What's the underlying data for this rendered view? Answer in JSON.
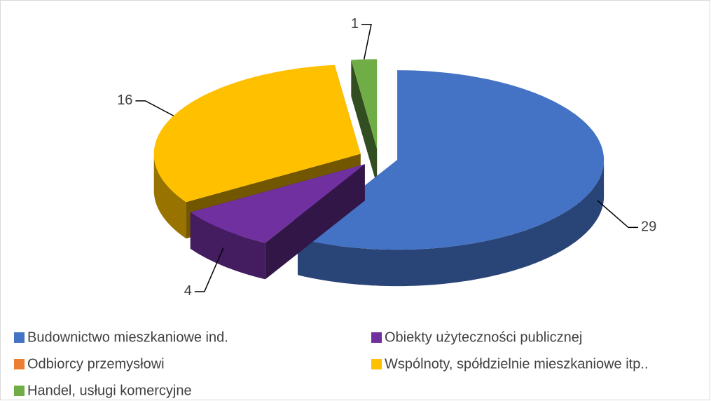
{
  "chart_data": {
    "type": "pie3d",
    "categories": [
      "Budownictwo mieszkaniowe ind.",
      "Obiekty użyteczności publicznej",
      "Odbiorcy przemysłowi",
      "Wspólnoty, spółdzielnie mieszkaniowe itp..",
      "Handel, usługi komercyjne"
    ],
    "values": [
      29,
      4,
      0,
      16,
      1
    ],
    "colors": [
      "#4472c4",
      "#7030a0",
      "#ed7d31",
      "#ffc000",
      "#70ad47"
    ],
    "legend": "bottom"
  }
}
